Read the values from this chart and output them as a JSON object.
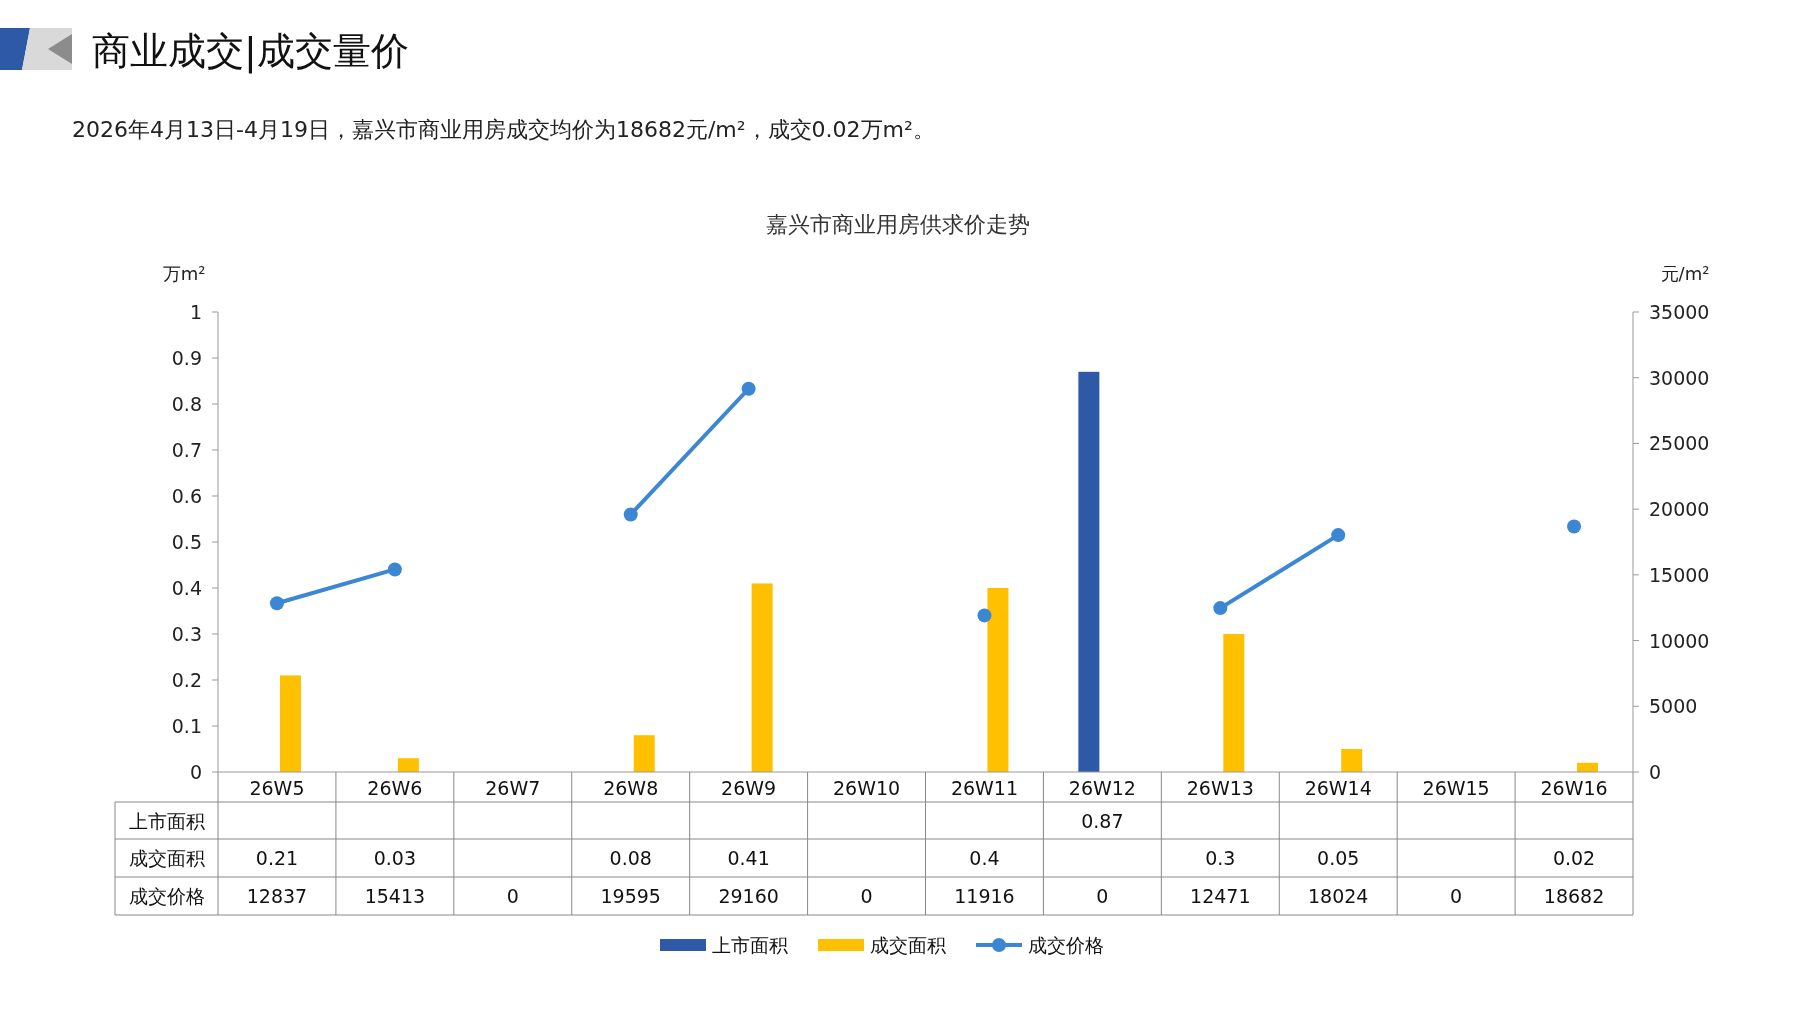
{
  "chart_data": {
    "type": "bar",
    "title": "嘉兴市商业用房供求价走势",
    "annotations": [
      "商业成交|成交量价",
      "2026年4月13日-4月19日，嘉兴市商业用房成交均价为18682元/m²，成交0.02万m²。"
    ],
    "ylabel": "万m²",
    "y2label": "元/m²",
    "categories": [
      "26W5",
      "26W6",
      "26W7",
      "26W8",
      "26W9",
      "26W10",
      "26W11",
      "26W12",
      "26W13",
      "26W14",
      "26W15",
      "26W16"
    ],
    "ylim": [
      0,
      1
    ],
    "yticks": [
      0,
      0.1,
      0.2,
      0.3,
      0.4,
      0.5,
      0.6,
      0.7,
      0.8,
      0.9,
      1
    ],
    "y2lim": [
      0,
      35000
    ],
    "y2ticks": [
      0,
      5000,
      10000,
      15000,
      20000,
      25000,
      30000,
      35000
    ],
    "series": [
      {
        "name": "上市面积",
        "color": "#2e59a7",
        "values": [
          null,
          null,
          null,
          null,
          null,
          null,
          null,
          0.87,
          null,
          null,
          null,
          null
        ],
        "value_labels": [
          null,
          null,
          null,
          null,
          null,
          null,
          null,
          "0.87",
          null,
          null,
          null,
          null
        ]
      },
      {
        "name": "成交面积",
        "color": "#ffc000",
        "values": [
          0.21,
          0.03,
          null,
          0.08,
          0.41,
          null,
          0.4,
          null,
          0.3,
          0.05,
          null,
          0.02
        ],
        "value_labels": [
          "0.21",
          "0.03",
          null,
          "0.08",
          "0.41",
          null,
          "0.4",
          null,
          "0.3",
          "0.05",
          null,
          "0.02"
        ]
      },
      {
        "name": "成交价格",
        "type": "line",
        "axis": "y2",
        "color": "#3b87d4",
        "marker": "circle",
        "values": [
          12837,
          15413,
          null,
          19595,
          29160,
          null,
          11916,
          null,
          12471,
          18024,
          null,
          18682
        ],
        "value_labels": [
          "12837",
          "15413",
          "0",
          "19595",
          "29160",
          "0",
          "11916",
          "0",
          "12471",
          "18024",
          "0",
          "18682"
        ]
      }
    ],
    "legend": "bottom",
    "grid": false
  }
}
